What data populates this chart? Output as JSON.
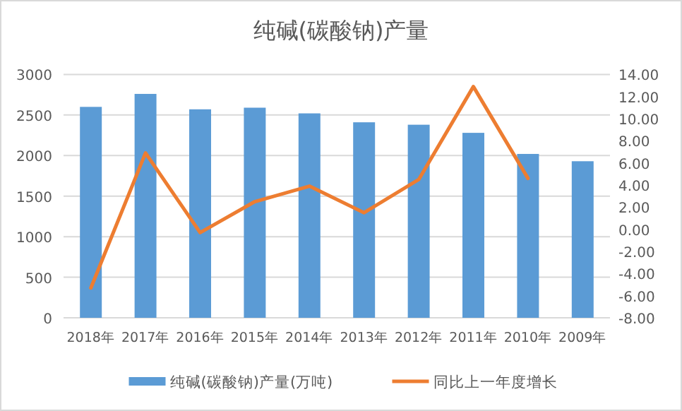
{
  "chart_data": {
    "type": "bar",
    "title": "纯碱(碳酸钠)产量",
    "categories": [
      "2018年",
      "2017年",
      "2016年",
      "2015年",
      "2014年",
      "2013年",
      "2012年",
      "2011年",
      "2010年",
      "2009年"
    ],
    "series": [
      {
        "name": "纯碱(碳酸钠)产量(万吨)",
        "color": "#5b9bd5",
        "values": [
          2600,
          2760,
          2570,
          2590,
          2520,
          2410,
          2380,
          2280,
          2020,
          1930
        ]
      },
      {
        "name": "同比上一年度增长",
        "type": "line",
        "axis": "y2",
        "color": "#ed7d31",
        "values": [
          -5.3,
          6.9,
          -0.3,
          2.5,
          3.9,
          1.5,
          4.5,
          12.9,
          4.6,
          null
        ]
      }
    ],
    "ylim": [
      0,
      3000
    ],
    "yticks": [
      0,
      500,
      1000,
      1500,
      2000,
      2500,
      3000
    ],
    "y2lim": [
      -8,
      14
    ],
    "y2ticks": [
      {
        "value": -8,
        "label": "-8.00"
      },
      {
        "value": -6,
        "label": "-6.00"
      },
      {
        "value": -4,
        "label": "-4.00"
      },
      {
        "value": -2,
        "label": "-2.00"
      },
      {
        "value": 0,
        "label": "0.00"
      },
      {
        "value": 2,
        "label": "2.00"
      },
      {
        "value": 4,
        "label": "4.00"
      },
      {
        "value": 6,
        "label": "6.00"
      },
      {
        "value": 8,
        "label": "8.00"
      },
      {
        "value": 10,
        "label": "10.00"
      },
      {
        "value": 12,
        "label": "12.00"
      },
      {
        "value": 14,
        "label": "14.00"
      }
    ],
    "grid": "y",
    "legend": "bottom"
  }
}
